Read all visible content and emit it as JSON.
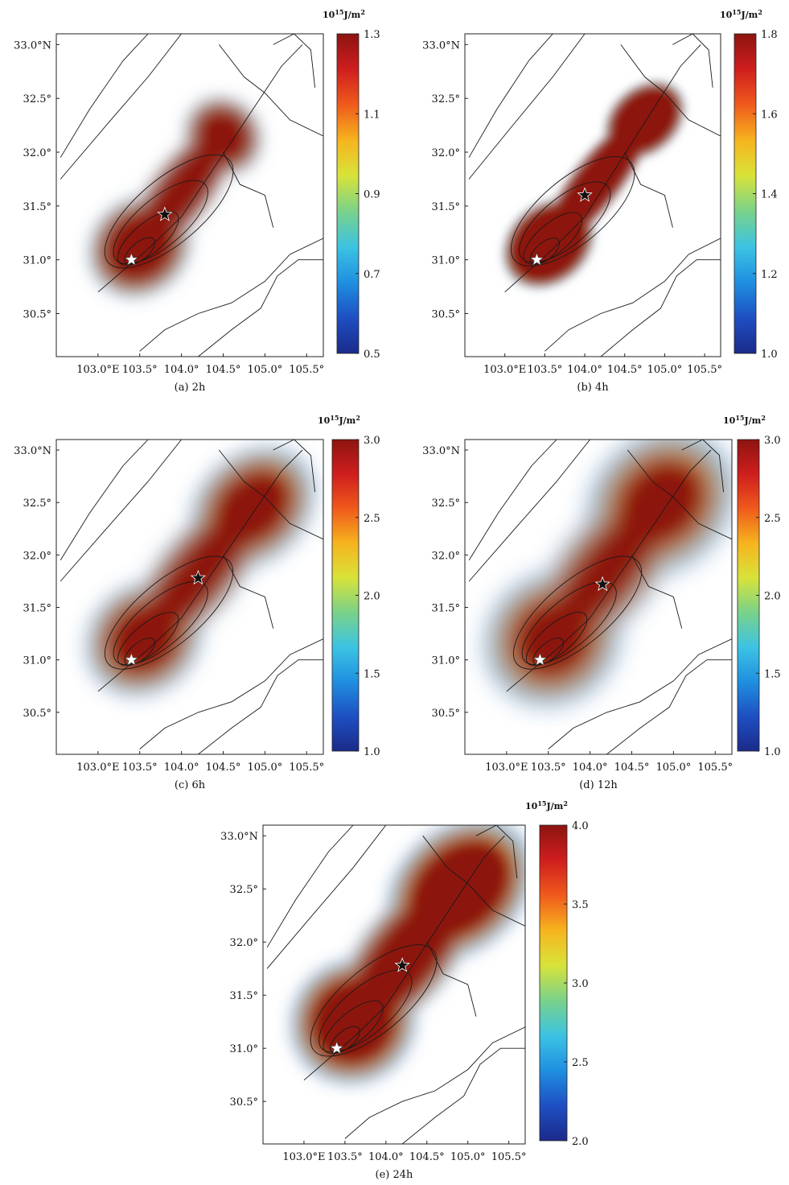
{
  "colormap": [
    "#1b2a8a",
    "#1e4fc2",
    "#1f8fe0",
    "#3cc3e3",
    "#79d28a",
    "#d8e33a",
    "#f6b41e",
    "#ef5a1c",
    "#cf1e1e",
    "#8c1410"
  ],
  "contour_color": "#1a1a1a",
  "star_colors": {
    "epicenter": "#ffffff",
    "aftershock": "#111111"
  },
  "chart_data": [
    {
      "type": "heatmap",
      "caption": "(a) 2h",
      "colorbar_unit": {
        "base": "10",
        "exp": "15",
        "rest": "J/m",
        "sq": "2"
      },
      "colorbar_ticks": [
        0.5,
        0.7,
        0.9,
        1.1,
        1.3
      ],
      "colorbar_tick_labels": [
        "0.5",
        "0.7",
        "0.9",
        "1.1",
        "1.3"
      ],
      "clim": [
        0.5,
        1.3
      ],
      "xlim": [
        102.5,
        105.7
      ],
      "ylim": [
        30.1,
        33.1
      ],
      "xticks": [
        103.0,
        103.5,
        104.0,
        104.5,
        105.0,
        105.5
      ],
      "xtick_labels": [
        "103.0°E",
        "103.5°",
        "104.0°",
        "104.5°",
        "105.0°",
        "105.5°"
      ],
      "yticks": [
        30.5,
        31.0,
        31.5,
        32.0,
        32.5,
        33.0
      ],
      "ytick_labels": [
        "30.5°",
        "31.0°",
        "31.5°",
        "32.0°",
        "32.5°",
        "33.0°N"
      ],
      "epicenter": [
        103.4,
        31.0
      ],
      "aftershock": [
        103.8,
        31.42
      ],
      "lobe_sw": {
        "lon": 103.5,
        "lat": 31.12,
        "rx": 0.62,
        "ry": 0.42,
        "rot": -42
      },
      "lobe_ne": {
        "lon": 104.5,
        "lat": 32.15,
        "rx": 0.42,
        "ry": 0.36,
        "rot": -42
      },
      "high_core_scale": 0.8,
      "blur_deg": 0.1
    },
    {
      "type": "heatmap",
      "caption": "(b) 4h",
      "colorbar_unit": {
        "base": "10",
        "exp": "15",
        "rest": "J/m",
        "sq": "2"
      },
      "colorbar_ticks": [
        1.0,
        1.2,
        1.4,
        1.6,
        1.8
      ],
      "colorbar_tick_labels": [
        "1.0",
        "1.2",
        "1.4",
        "1.6",
        "1.8"
      ],
      "clim": [
        1.0,
        1.8
      ],
      "xlim": [
        102.5,
        105.7
      ],
      "ylim": [
        30.1,
        33.1
      ],
      "xticks": [
        103.0,
        103.5,
        104.0,
        104.5,
        105.0,
        105.5
      ],
      "xtick_labels": [
        "103.0°E",
        "103.5°",
        "104.0°",
        "104.5°",
        "105.0°",
        "105.5°"
      ],
      "yticks": [
        30.5,
        31.0,
        31.5,
        32.0,
        32.5,
        33.0
      ],
      "ytick_labels": [
        "30.5°",
        "31.0°",
        "31.5°",
        "32.0°",
        "32.5°",
        "33.0°N"
      ],
      "epicenter": [
        103.4,
        31.0
      ],
      "aftershock": [
        104.0,
        31.6
      ],
      "lobe_sw": {
        "lon": 103.55,
        "lat": 31.15,
        "rx": 0.62,
        "ry": 0.36,
        "rot": -42
      },
      "lobe_ne": {
        "lon": 104.75,
        "lat": 32.3,
        "rx": 0.55,
        "ry": 0.3,
        "rot": -42
      },
      "high_core_scale": 0.9,
      "blur_deg": 0.06
    },
    {
      "type": "heatmap",
      "caption": "(c) 6h",
      "colorbar_unit": {
        "base": "10",
        "exp": "15",
        "rest": "J/m",
        "sq": "2"
      },
      "colorbar_ticks": [
        1.0,
        1.5,
        2.0,
        2.5,
        3.0
      ],
      "colorbar_tick_labels": [
        "1.0",
        "1.5",
        "2.0",
        "2.5",
        "3.0"
      ],
      "clim": [
        1.0,
        3.0
      ],
      "xlim": [
        102.5,
        105.7
      ],
      "ylim": [
        30.1,
        33.1
      ],
      "xticks": [
        103.0,
        103.5,
        104.0,
        104.5,
        105.0,
        105.5
      ],
      "xtick_labels": [
        "103.0°E",
        "103.5°",
        "104.0°",
        "104.5°",
        "105.0°",
        "105.5°"
      ],
      "yticks": [
        30.5,
        31.0,
        31.5,
        32.0,
        32.5,
        33.0
      ],
      "ytick_labels": [
        "30.5°",
        "31.0°",
        "31.5°",
        "32.0°",
        "32.5°",
        "33.0°N"
      ],
      "epicenter": [
        103.4,
        31.0
      ],
      "aftershock": [
        104.2,
        31.78
      ],
      "lobe_sw": {
        "lon": 103.55,
        "lat": 31.2,
        "rx": 0.7,
        "ry": 0.48,
        "rot": -42
      },
      "lobe_ne": {
        "lon": 104.85,
        "lat": 32.45,
        "rx": 0.78,
        "ry": 0.48,
        "rot": -42
      },
      "high_core_scale": 0.72,
      "blur_deg": 0.12
    },
    {
      "type": "heatmap",
      "caption": "(d) 12h",
      "colorbar_unit": {
        "base": "10",
        "exp": "15",
        "rest": "J/m",
        "sq": "2"
      },
      "colorbar_ticks": [
        1.0,
        1.5,
        2.0,
        2.5,
        3.0
      ],
      "colorbar_tick_labels": [
        "1.0",
        "1.5",
        "2.0",
        "2.5",
        "3.0"
      ],
      "clim": [
        1.0,
        3.0
      ],
      "xlim": [
        102.5,
        105.7
      ],
      "ylim": [
        30.1,
        33.1
      ],
      "xticks": [
        103.0,
        103.5,
        104.0,
        104.5,
        105.0,
        105.5
      ],
      "xtick_labels": [
        "103.0°E",
        "103.5°",
        "104.0°",
        "104.5°",
        "105.0°",
        "105.5°"
      ],
      "yticks": [
        30.5,
        31.0,
        31.5,
        32.0,
        32.5,
        33.0
      ],
      "ytick_labels": [
        "30.5°",
        "31.0°",
        "31.5°",
        "32.0°",
        "32.5°",
        "33.0°N"
      ],
      "epicenter": [
        103.4,
        31.0
      ],
      "aftershock": [
        104.15,
        31.72
      ],
      "lobe_sw": {
        "lon": 103.55,
        "lat": 31.2,
        "rx": 0.8,
        "ry": 0.58,
        "rot": -42
      },
      "lobe_ne": {
        "lon": 104.85,
        "lat": 32.5,
        "rx": 0.9,
        "ry": 0.6,
        "rot": -42
      },
      "high_core_scale": 0.68,
      "blur_deg": 0.14
    },
    {
      "type": "heatmap",
      "caption": "(e) 24h",
      "colorbar_unit": {
        "base": "10",
        "exp": "15",
        "rest": "J/m",
        "sq": "2"
      },
      "colorbar_ticks": [
        2.0,
        2.5,
        3.0,
        3.5,
        4.0
      ],
      "colorbar_tick_labels": [
        "2.0",
        "2.5",
        "3.0",
        "3.5",
        "4.0"
      ],
      "clim": [
        2.0,
        4.0
      ],
      "xlim": [
        102.5,
        105.7
      ],
      "ylim": [
        30.1,
        33.1
      ],
      "xticks": [
        103.0,
        103.5,
        104.0,
        104.5,
        105.0,
        105.5
      ],
      "xtick_labels": [
        "103.0°E",
        "103.5°",
        "104.0°",
        "104.5°",
        "105.0°",
        "105.5°"
      ],
      "yticks": [
        30.5,
        31.0,
        31.5,
        32.0,
        32.5,
        33.0
      ],
      "ytick_labels": [
        "30.5°",
        "31.0°",
        "31.5°",
        "32.0°",
        "32.5°",
        "33.0°N"
      ],
      "epicenter": [
        103.4,
        31.0
      ],
      "aftershock": [
        104.2,
        31.78
      ],
      "lobe_sw": {
        "lon": 103.6,
        "lat": 31.25,
        "rx": 0.75,
        "ry": 0.55,
        "rot": -42
      },
      "lobe_ne": {
        "lon": 104.9,
        "lat": 32.5,
        "rx": 0.95,
        "ry": 0.55,
        "rot": -42
      },
      "high_core_scale": 0.78,
      "blur_deg": 0.1
    }
  ]
}
